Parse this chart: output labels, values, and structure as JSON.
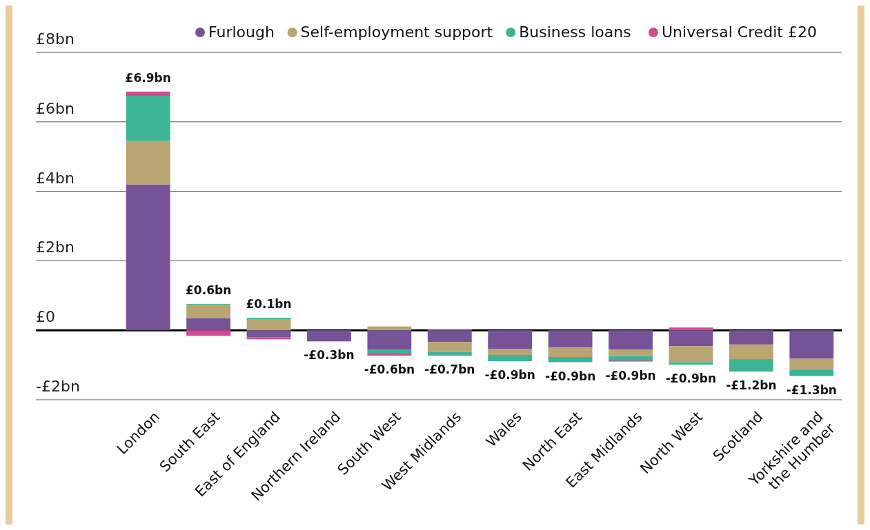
{
  "chart_data": {
    "type": "bar",
    "stacked": true,
    "categories": [
      "London",
      "South East",
      "East of England",
      "Northern Ireland",
      "South West",
      "West Midlands",
      "Wales",
      "North East",
      "East Midlands",
      "North West",
      "Scotland",
      "Yorkshire and the Humber"
    ],
    "series": [
      {
        "name": "Furlough",
        "color": "#765296",
        "values": [
          4.2,
          0.35,
          -0.2,
          -0.32,
          -0.55,
          -0.34,
          -0.54,
          -0.5,
          -0.56,
          -0.46,
          -0.41,
          -0.82
        ]
      },
      {
        "name": "Self-employment support",
        "color": "#b8a572",
        "values": [
          1.25,
          0.39,
          0.32,
          null,
          0.11,
          -0.28,
          -0.17,
          -0.27,
          -0.18,
          -0.46,
          -0.42,
          -0.31
        ]
      },
      {
        "name": "Business loans",
        "color": "#3db496",
        "values": [
          1.3,
          0.02,
          0.04,
          null,
          -0.12,
          -0.11,
          -0.18,
          -0.15,
          -0.13,
          -0.07,
          -0.36,
          -0.19
        ]
      },
      {
        "name": "Universal Credit £20",
        "color": "#d04b91",
        "values": [
          0.12,
          -0.16,
          -0.06,
          null,
          -0.06,
          0.03,
          null,
          null,
          -0.03,
          0.08,
          null,
          null
        ]
      }
    ],
    "totals": [
      "£6.9bn",
      "£0.6bn",
      "£0.1bn",
      "-£0.3bn",
      "-£0.6bn",
      "-£0.7bn",
      "-£0.9bn",
      "-£0.9bn",
      "-£0.9bn",
      "-£0.9bn",
      "-£1.2bn",
      "-£1.3bn"
    ],
    "ylim": [
      -2,
      8
    ],
    "yticks": [
      {
        "value": -2,
        "label": "-£2bn"
      },
      {
        "value": 0,
        "label": "£0"
      },
      {
        "value": 2,
        "label": "£2bn"
      },
      {
        "value": 4,
        "label": "£4bn"
      },
      {
        "value": 6,
        "label": "£6bn"
      },
      {
        "value": 8,
        "label": "£8bn"
      }
    ],
    "grid": "y",
    "legend": "top right"
  }
}
